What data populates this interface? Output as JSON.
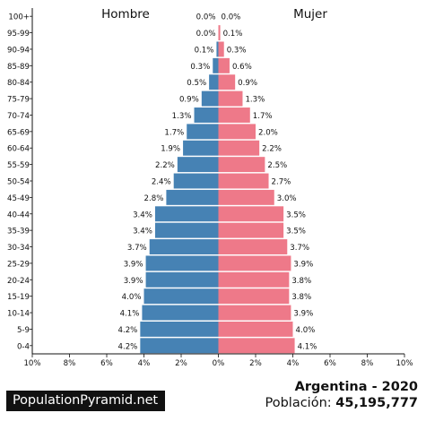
{
  "chart_data": {
    "type": "bar",
    "subtype": "population-pyramid",
    "left_label": "Hombre",
    "right_label": "Mujer",
    "categories": [
      "100+",
      "95-99",
      "90-94",
      "85-89",
      "80-84",
      "75-79",
      "70-74",
      "65-69",
      "60-64",
      "55-59",
      "50-54",
      "45-49",
      "40-44",
      "35-39",
      "30-34",
      "25-29",
      "20-24",
      "15-19",
      "10-14",
      "5-9",
      "0-4"
    ],
    "series": [
      {
        "name": "Hombre",
        "values": [
          0.0,
          0.0,
          0.1,
          0.3,
          0.5,
          0.9,
          1.3,
          1.7,
          1.9,
          2.2,
          2.4,
          2.8,
          3.4,
          3.4,
          3.7,
          3.9,
          3.9,
          4.0,
          4.1,
          4.2,
          4.2
        ],
        "labels": [
          "0.0%",
          "0.0%",
          "0.1%",
          "0.3%",
          "0.5%",
          "0.9%",
          "1.3%",
          "1.7%",
          "1.9%",
          "2.2%",
          "2.4%",
          "2.8%",
          "3.4%",
          "3.4%",
          "3.7%",
          "3.9%",
          "3.9%",
          "4.0%",
          "4.1%",
          "4.2%",
          "4.2%"
        ]
      },
      {
        "name": "Mujer",
        "values": [
          0.0,
          0.1,
          0.3,
          0.6,
          0.9,
          1.3,
          1.7,
          2.0,
          2.2,
          2.5,
          2.7,
          3.0,
          3.5,
          3.5,
          3.7,
          3.9,
          3.8,
          3.8,
          3.9,
          4.0,
          4.1
        ],
        "labels": [
          "0.0%",
          "0.1%",
          "0.3%",
          "0.6%",
          "0.9%",
          "1.3%",
          "1.7%",
          "2.0%",
          "2.2%",
          "2.5%",
          "2.7%",
          "3.0%",
          "3.5%",
          "3.5%",
          "3.7%",
          "3.9%",
          "3.8%",
          "3.8%",
          "3.9%",
          "4.0%",
          "4.1%"
        ]
      }
    ],
    "xlim": [
      -10,
      10
    ],
    "x_ticks": [
      -10,
      -8,
      -6,
      -4,
      -2,
      0,
      2,
      4,
      6,
      8,
      10
    ],
    "x_tick_labels": [
      "10%",
      "8%",
      "6%",
      "4%",
      "2%",
      "0%",
      "2%",
      "4%",
      "6%",
      "8%",
      "10%"
    ],
    "colors": {
      "Hombre": "#4682b4",
      "Mujer": "#ee7989"
    }
  },
  "title": "Argentina - 2020",
  "population_label": "Población:",
  "population_value": "45,195,777",
  "brand": "PopulationPyramid.net"
}
